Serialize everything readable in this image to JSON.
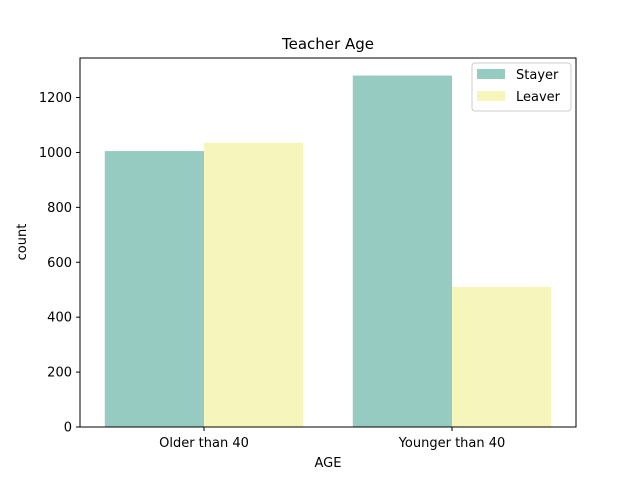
{
  "chart_data": {
    "type": "bar",
    "title": "Teacher Age",
    "xlabel": "AGE",
    "ylabel": "count",
    "categories": [
      "Older than 40",
      "Younger than 40"
    ],
    "series": [
      {
        "name": "Stayer",
        "values": [
          1005,
          1280
        ],
        "color": "#96cbc2"
      },
      {
        "name": "Leaver",
        "values": [
          1035,
          510
        ],
        "color": "#f6f6bc"
      }
    ],
    "ylim": [
      0,
      1344
    ],
    "yticks": [
      0,
      200,
      400,
      600,
      800,
      1000,
      1200
    ],
    "grid": false,
    "legend_position": "top-right"
  }
}
